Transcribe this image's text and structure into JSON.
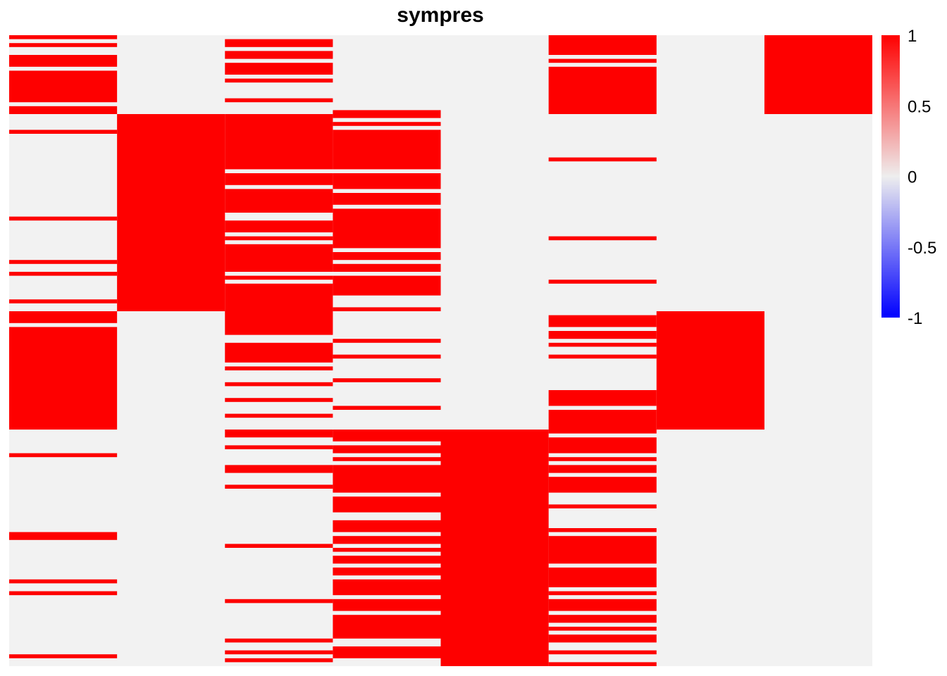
{
  "chart_data": {
    "type": "heatmap",
    "title": "sympres",
    "xlabel": "",
    "ylabel": "",
    "n_columns": 8,
    "n_rows": 160,
    "value_range": [
      -1,
      1
    ],
    "colors": {
      "zero": "#f2f2f2",
      "positive": "#fe0000",
      "negative": "#0000ff",
      "midpoint": "#eeeeee"
    },
    "legend": {
      "position": "right",
      "ticks": [
        "1",
        "0.5",
        "0",
        "-0.5",
        "-1"
      ],
      "tick_values": [
        1,
        0.5,
        0,
        -0.5,
        -1
      ]
    },
    "columns": [
      {
        "active_row_ranges": [
          [
            0,
            0
          ],
          [
            2,
            2
          ],
          [
            5,
            7
          ],
          [
            9,
            16
          ],
          [
            18,
            19
          ],
          [
            24,
            24
          ],
          [
            46,
            46
          ],
          [
            57,
            57
          ],
          [
            60,
            60
          ],
          [
            67,
            67
          ],
          [
            70,
            72
          ],
          [
            74,
            99
          ],
          [
            106,
            106
          ],
          [
            126,
            127
          ],
          [
            138,
            138
          ],
          [
            141,
            141
          ],
          [
            157,
            157
          ]
        ]
      },
      {
        "active_row_ranges": [
          [
            20,
            69
          ]
        ]
      },
      {
        "active_row_ranges": [
          [
            1,
            2
          ],
          [
            4,
            5
          ],
          [
            7,
            9
          ],
          [
            11,
            11
          ],
          [
            16,
            16
          ],
          [
            20,
            33
          ],
          [
            35,
            37
          ],
          [
            39,
            44
          ],
          [
            47,
            49
          ],
          [
            51,
            51
          ],
          [
            53,
            59
          ],
          [
            61,
            61
          ],
          [
            63,
            75
          ],
          [
            78,
            82
          ],
          [
            84,
            84
          ],
          [
            88,
            88
          ],
          [
            92,
            92
          ],
          [
            96,
            96
          ],
          [
            100,
            101
          ],
          [
            104,
            104
          ],
          [
            109,
            110
          ],
          [
            114,
            114
          ],
          [
            129,
            129
          ],
          [
            143,
            143
          ],
          [
            153,
            153
          ],
          [
            156,
            156
          ],
          [
            158,
            158
          ]
        ]
      },
      {
        "active_row_ranges": [
          [
            19,
            20
          ],
          [
            22,
            22
          ],
          [
            24,
            33
          ],
          [
            35,
            38
          ],
          [
            40,
            42
          ],
          [
            44,
            53
          ],
          [
            55,
            56
          ],
          [
            58,
            59
          ],
          [
            61,
            65
          ],
          [
            69,
            69
          ],
          [
            77,
            77
          ],
          [
            81,
            81
          ],
          [
            87,
            87
          ],
          [
            94,
            94
          ],
          [
            100,
            102
          ],
          [
            104,
            105
          ],
          [
            107,
            107
          ],
          [
            109,
            115
          ],
          [
            117,
            120
          ],
          [
            123,
            125
          ],
          [
            127,
            128
          ],
          [
            130,
            130
          ],
          [
            132,
            133
          ],
          [
            135,
            136
          ],
          [
            138,
            141
          ],
          [
            143,
            145
          ],
          [
            147,
            152
          ],
          [
            155,
            157
          ]
        ]
      },
      {
        "active_row_ranges": [
          [
            100,
            159
          ]
        ]
      },
      {
        "active_row_ranges": [
          [
            0,
            4
          ],
          [
            6,
            6
          ],
          [
            8,
            19
          ],
          [
            31,
            31
          ],
          [
            51,
            51
          ],
          [
            62,
            62
          ],
          [
            71,
            73
          ],
          [
            75,
            76
          ],
          [
            78,
            78
          ],
          [
            81,
            81
          ],
          [
            90,
            93
          ],
          [
            95,
            100
          ],
          [
            102,
            105
          ],
          [
            107,
            107
          ],
          [
            109,
            110
          ],
          [
            112,
            115
          ],
          [
            119,
            119
          ],
          [
            125,
            125
          ],
          [
            127,
            133
          ],
          [
            135,
            139
          ],
          [
            141,
            141
          ],
          [
            143,
            145
          ],
          [
            147,
            148
          ],
          [
            150,
            150
          ],
          [
            152,
            153
          ],
          [
            156,
            156
          ],
          [
            159,
            159
          ]
        ]
      },
      {
        "active_row_ranges": [
          [
            70,
            99
          ]
        ]
      },
      {
        "active_row_ranges": [
          [
            0,
            19
          ]
        ]
      }
    ]
  }
}
